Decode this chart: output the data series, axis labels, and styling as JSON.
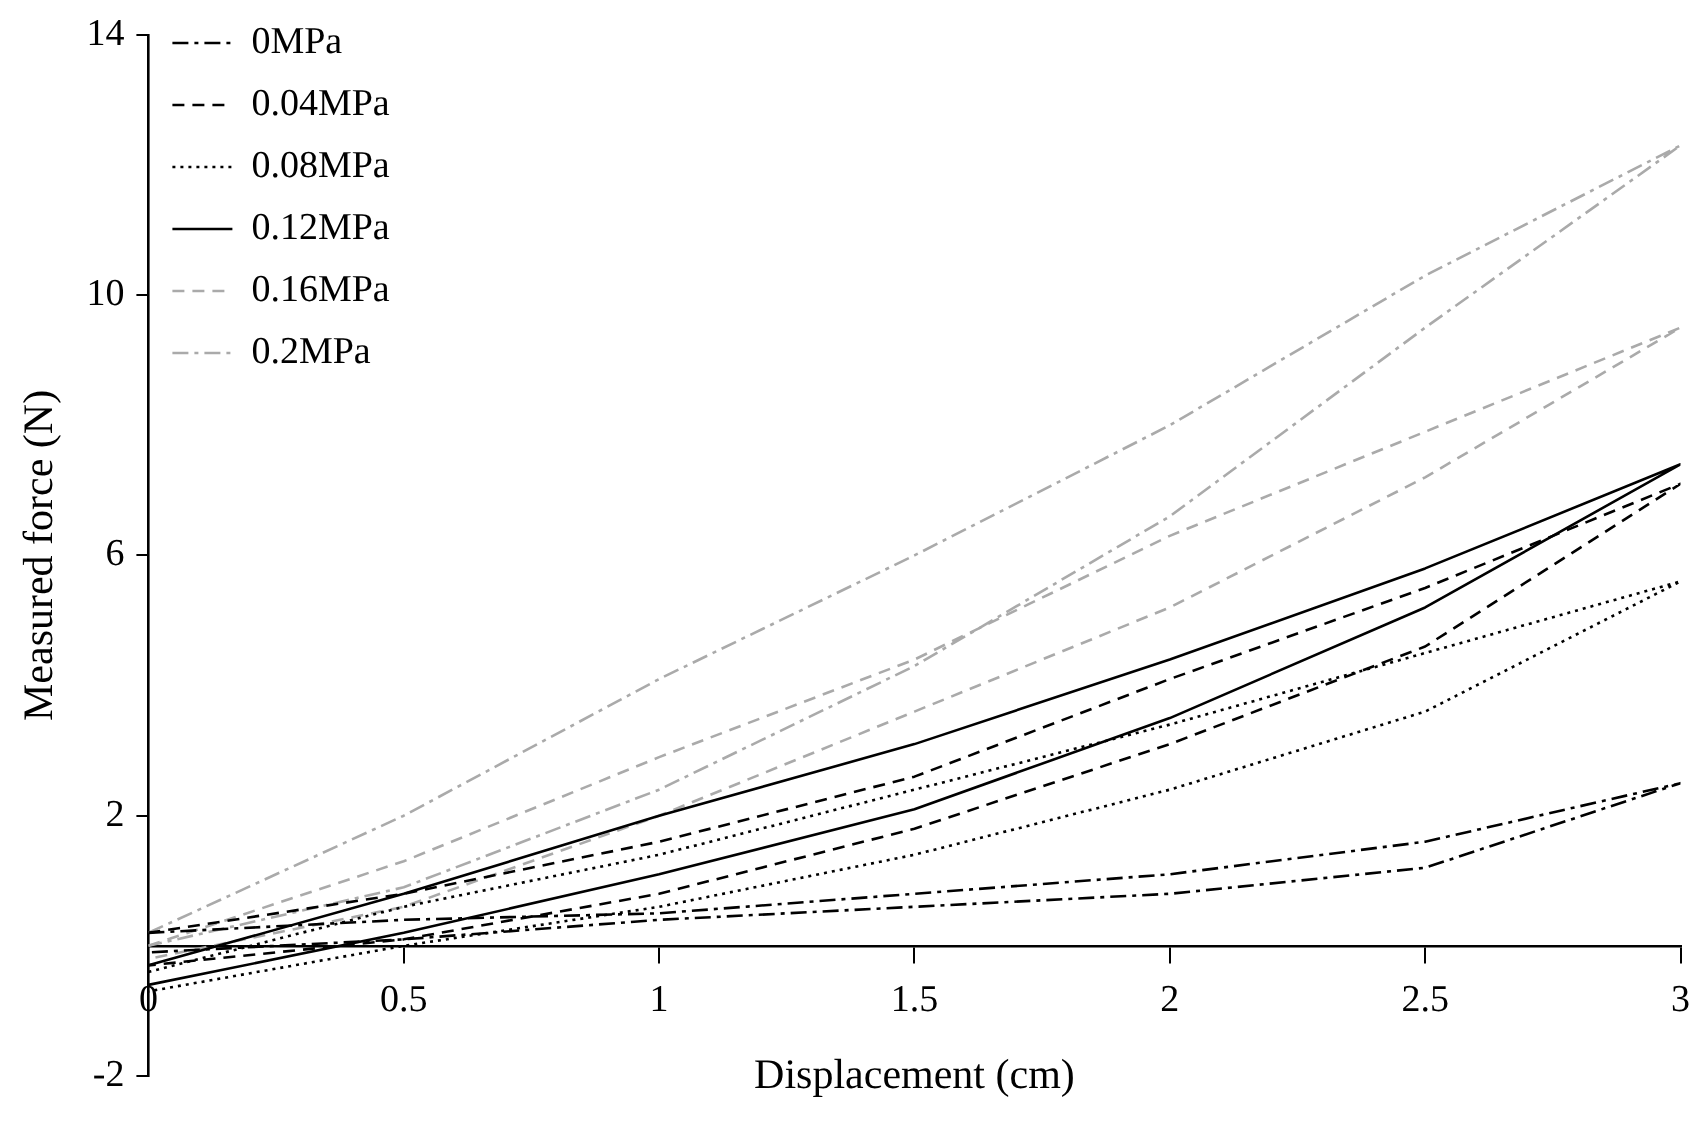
{
  "chart_data": {
    "type": "line",
    "xlabel": "Displacement (cm)",
    "ylabel": "Measured force (N)",
    "xlim": [
      0,
      3
    ],
    "xticks": [
      0,
      0.5,
      1,
      1.5,
      2,
      2.5,
      3
    ],
    "ylim": [
      -2,
      14
    ],
    "yticks": [
      -2,
      2,
      6,
      10,
      14
    ],
    "grid": false,
    "legend": "top left",
    "marker": "none",
    "series": [
      {
        "name": "0MPa",
        "color": "#000000",
        "line_style": "dashdot",
        "x": [
          0,
          0.5,
          1,
          1.5,
          2,
          2.5,
          3,
          2.5,
          2,
          1.5,
          1,
          0.5,
          0
        ],
        "values": [
          0.2,
          0.4,
          0.5,
          0.8,
          1.1,
          1.6,
          2.5,
          1.2,
          0.8,
          0.6,
          0.4,
          0.1,
          -0.1
        ]
      },
      {
        "name": "0.04MPa",
        "color": "#000000",
        "line_style": "dashed",
        "x": [
          0,
          0.5,
          1,
          1.5,
          2,
          2.5,
          3,
          2.5,
          2,
          1.5,
          1,
          0.5,
          0
        ],
        "values": [
          0.2,
          0.8,
          1.6,
          2.6,
          4.1,
          5.5,
          7.1,
          4.6,
          3.1,
          1.8,
          0.8,
          0.1,
          -0.3
        ]
      },
      {
        "name": "0.08MPa",
        "color": "#000000",
        "line_style": "dotted",
        "x": [
          0,
          0.5,
          1,
          1.5,
          2,
          2.5,
          3,
          2.5,
          2,
          1.5,
          1,
          0.5,
          0
        ],
        "values": [
          -0.4,
          0.6,
          1.4,
          2.4,
          3.4,
          4.5,
          5.6,
          3.6,
          2.4,
          1.4,
          0.6,
          0.0,
          -0.7
        ]
      },
      {
        "name": "0.12MPa",
        "color": "#000000",
        "line_style": "solid",
        "x": [
          0,
          0.5,
          1,
          1.5,
          2,
          2.5,
          3,
          2.5,
          2,
          1.5,
          1,
          0.5,
          0
        ],
        "values": [
          -0.3,
          0.8,
          2.0,
          3.1,
          4.4,
          5.8,
          7.4,
          5.2,
          3.5,
          2.1,
          1.1,
          0.2,
          -0.6
        ]
      },
      {
        "name": "0.16MPa",
        "color": "#aaaaaa",
        "line_style": "dashed",
        "x": [
          0,
          0.5,
          1,
          1.5,
          2,
          2.5,
          3,
          2.5,
          2,
          1.5,
          1,
          0.5,
          0
        ],
        "values": [
          0.0,
          1.3,
          2.9,
          4.4,
          6.3,
          7.9,
          9.5,
          7.2,
          5.2,
          3.6,
          2.0,
          0.6,
          -0.2
        ]
      },
      {
        "name": "0.2MPa",
        "color": "#aaaaaa",
        "line_style": "dashdot",
        "x": [
          0,
          0.5,
          1,
          1.5,
          2,
          2.5,
          3,
          2.5,
          2,
          1.5,
          1,
          0.5,
          0
        ],
        "values": [
          0.2,
          2.0,
          4.1,
          6.0,
          8.0,
          10.3,
          12.3,
          9.5,
          6.6,
          4.3,
          2.4,
          0.9,
          0.0
        ]
      }
    ]
  }
}
